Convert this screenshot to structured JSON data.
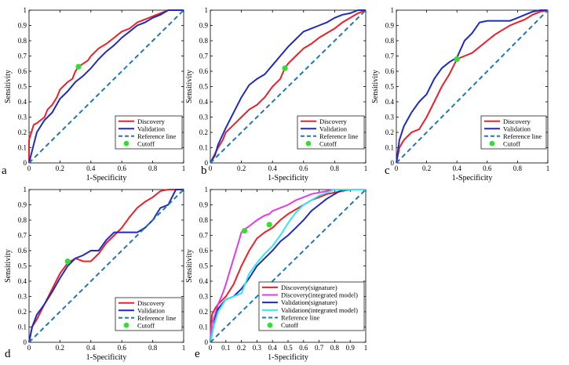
{
  "chart_data": [
    {
      "type": "line",
      "panel": "a",
      "xlabel": "1-Specificity",
      "ylabel": "Sensitivity",
      "xlim": [
        0,
        1
      ],
      "ylim": [
        0,
        1
      ],
      "xticks": [
        "0",
        "0.2",
        "0.4",
        "0.6",
        "0.8",
        "1"
      ],
      "yticks": [
        "0",
        "0.1",
        "0.2",
        "0.3",
        "0.4",
        "0.5",
        "0.6",
        "0.7",
        "0.8",
        "0.9",
        "1"
      ],
      "legend_position": "bottom-right",
      "series": [
        {
          "name": "Discovery",
          "color": "#e8212a",
          "style": "solid",
          "x": [
            0,
            0,
            0.03,
            0.05,
            0.1,
            0.12,
            0.15,
            0.18,
            0.2,
            0.22,
            0.25,
            0.28,
            0.3,
            0.32,
            0.35,
            0.38,
            0.4,
            0.45,
            0.5,
            0.55,
            0.6,
            0.65,
            0.7,
            0.75,
            0.8,
            0.85,
            0.9,
            1
          ],
          "y": [
            0,
            0.15,
            0.25,
            0.26,
            0.3,
            0.35,
            0.38,
            0.43,
            0.48,
            0.5,
            0.53,
            0.55,
            0.6,
            0.63,
            0.65,
            0.67,
            0.7,
            0.75,
            0.78,
            0.82,
            0.86,
            0.88,
            0.92,
            0.94,
            0.96,
            0.98,
            1,
            1
          ]
        },
        {
          "name": "Validation",
          "color": "#1f2bbd",
          "style": "solid",
          "x": [
            0,
            0.03,
            0.05,
            0.1,
            0.15,
            0.2,
            0.25,
            0.3,
            0.35,
            0.4,
            0.45,
            0.5,
            0.55,
            0.6,
            0.65,
            0.7,
            0.75,
            0.8,
            0.85,
            0.9,
            0.95,
            1
          ],
          "y": [
            0,
            0.12,
            0.2,
            0.28,
            0.33,
            0.42,
            0.47,
            0.53,
            0.57,
            0.62,
            0.68,
            0.73,
            0.77,
            0.82,
            0.86,
            0.9,
            0.92,
            0.95,
            0.97,
            1,
            1,
            1
          ]
        },
        {
          "name": "Reference line",
          "color": "#1f77b4",
          "style": "dashed",
          "x": [
            0,
            1
          ],
          "y": [
            0,
            1
          ]
        }
      ],
      "cutoffs": [
        {
          "name": "Cutoff",
          "color": "#33dd33",
          "x": 0.32,
          "y": 0.63
        }
      ]
    },
    {
      "type": "line",
      "panel": "b",
      "xlabel": "1-Specificity",
      "ylabel": "Sensitivity",
      "xlim": [
        0,
        1
      ],
      "ylim": [
        0,
        1
      ],
      "xticks": [
        "0",
        "0.2",
        "0.4",
        "0.6",
        "0.8",
        "1"
      ],
      "yticks": [
        "0",
        "0.1",
        "0.2",
        "0.3",
        "0.4",
        "0.5",
        "0.6",
        "0.7",
        "0.8",
        "0.9",
        "1"
      ],
      "legend_position": "bottom-right",
      "series": [
        {
          "name": "Discovery",
          "color": "#e8212a",
          "style": "solid",
          "x": [
            0,
            0.05,
            0.08,
            0.1,
            0.15,
            0.2,
            0.25,
            0.3,
            0.35,
            0.4,
            0.45,
            0.48,
            0.5,
            0.55,
            0.6,
            0.65,
            0.7,
            0.75,
            0.8,
            0.85,
            0.9,
            0.95,
            1
          ],
          "y": [
            0,
            0.1,
            0.15,
            0.2,
            0.25,
            0.3,
            0.35,
            0.38,
            0.43,
            0.5,
            0.55,
            0.62,
            0.65,
            0.7,
            0.75,
            0.78,
            0.82,
            0.85,
            0.88,
            0.92,
            0.95,
            0.98,
            1
          ]
        },
        {
          "name": "Validation",
          "color": "#1f2bbd",
          "style": "solid",
          "x": [
            0,
            0.03,
            0.05,
            0.1,
            0.15,
            0.2,
            0.25,
            0.3,
            0.35,
            0.4,
            0.45,
            0.5,
            0.55,
            0.6,
            0.65,
            0.7,
            0.75,
            0.8,
            0.85,
            0.9,
            0.95,
            1
          ],
          "y": [
            0,
            0.05,
            0.12,
            0.23,
            0.33,
            0.43,
            0.51,
            0.55,
            0.58,
            0.64,
            0.7,
            0.76,
            0.81,
            0.86,
            0.88,
            0.9,
            0.92,
            0.95,
            0.97,
            0.98,
            1,
            1
          ]
        },
        {
          "name": "Reference line",
          "color": "#1f77b4",
          "style": "dashed",
          "x": [
            0,
            1
          ],
          "y": [
            0,
            1
          ]
        }
      ],
      "cutoffs": [
        {
          "name": "Cutoff",
          "color": "#33dd33",
          "x": 0.48,
          "y": 0.62
        }
      ]
    },
    {
      "type": "line",
      "panel": "c",
      "xlabel": "1-Specificity",
      "ylabel": "Sensitivity",
      "xlim": [
        0,
        1
      ],
      "ylim": [
        0,
        1
      ],
      "xticks": [
        "0",
        "0.2",
        "0.4",
        "0.6",
        "0.8",
        "1"
      ],
      "yticks": [
        "0",
        "0.1",
        "0.2",
        "0.3",
        "0.4",
        "0.5",
        "0.6",
        "0.7",
        "0.8",
        "0.9",
        "1"
      ],
      "legend_position": "bottom-right",
      "series": [
        {
          "name": "Discovery",
          "color": "#e8212a",
          "style": "solid",
          "x": [
            0,
            0.02,
            0.05,
            0.1,
            0.15,
            0.2,
            0.25,
            0.3,
            0.35,
            0.4,
            0.45,
            0.5,
            0.55,
            0.6,
            0.65,
            0.7,
            0.75,
            0.8,
            0.85,
            0.9,
            0.95,
            1
          ],
          "y": [
            0,
            0.1,
            0.15,
            0.2,
            0.22,
            0.3,
            0.4,
            0.5,
            0.58,
            0.68,
            0.7,
            0.72,
            0.76,
            0.8,
            0.84,
            0.87,
            0.9,
            0.92,
            0.94,
            0.97,
            0.99,
            1
          ]
        },
        {
          "name": "Validation",
          "color": "#1f2bbd",
          "style": "solid",
          "x": [
            0,
            0.02,
            0.05,
            0.1,
            0.15,
            0.2,
            0.25,
            0.3,
            0.35,
            0.4,
            0.45,
            0.5,
            0.55,
            0.6,
            0.65,
            0.7,
            0.75,
            0.8,
            0.85,
            0.9,
            0.95,
            1
          ],
          "y": [
            0,
            0.15,
            0.24,
            0.33,
            0.4,
            0.45,
            0.55,
            0.62,
            0.66,
            0.69,
            0.8,
            0.85,
            0.92,
            0.93,
            0.93,
            0.93,
            0.93,
            0.95,
            0.97,
            0.99,
            1,
            1
          ]
        },
        {
          "name": "Reference line",
          "color": "#1f77b4",
          "style": "dashed",
          "x": [
            0,
            1
          ],
          "y": [
            0,
            1
          ]
        }
      ],
      "cutoffs": [
        {
          "name": "Cutoff",
          "color": "#33dd33",
          "x": 0.4,
          "y": 0.68
        }
      ]
    },
    {
      "type": "line",
      "panel": "d",
      "xlabel": "1-Specificity",
      "ylabel": "Sensitivity",
      "xlim": [
        0,
        1
      ],
      "ylim": [
        0,
        1
      ],
      "xticks": [
        "0",
        "0.2",
        "0.4",
        "0.6",
        "0.8",
        "1"
      ],
      "yticks": [
        "0",
        "0.1",
        "0.2",
        "0.3",
        "0.4",
        "0.5",
        "0.6",
        "0.7",
        "0.8",
        "0.9",
        "1"
      ],
      "legend_position": "bottom-right",
      "series": [
        {
          "name": "Discovery",
          "color": "#e8212a",
          "style": "solid",
          "x": [
            0,
            0.02,
            0.05,
            0.1,
            0.15,
            0.2,
            0.25,
            0.3,
            0.35,
            0.4,
            0.45,
            0.5,
            0.55,
            0.6,
            0.65,
            0.7,
            0.75,
            0.8,
            0.85,
            0.9,
            1
          ],
          "y": [
            0,
            0.1,
            0.15,
            0.25,
            0.35,
            0.45,
            0.52,
            0.55,
            0.53,
            0.53,
            0.58,
            0.65,
            0.7,
            0.75,
            0.82,
            0.88,
            0.92,
            0.95,
            0.99,
            1,
            1
          ]
        },
        {
          "name": "Validation",
          "color": "#1f2bbd",
          "style": "solid",
          "x": [
            0,
            0.02,
            0.05,
            0.1,
            0.15,
            0.2,
            0.25,
            0.3,
            0.35,
            0.4,
            0.45,
            0.5,
            0.55,
            0.6,
            0.65,
            0.7,
            0.75,
            0.8,
            0.85,
            0.9,
            0.95,
            1
          ],
          "y": [
            0,
            0.1,
            0.18,
            0.25,
            0.33,
            0.42,
            0.5,
            0.55,
            0.57,
            0.6,
            0.6,
            0.67,
            0.72,
            0.72,
            0.72,
            0.72,
            0.75,
            0.8,
            0.88,
            0.9,
            1,
            1
          ]
        },
        {
          "name": "Reference line",
          "color": "#1f77b4",
          "style": "dashed",
          "x": [
            0,
            1
          ],
          "y": [
            0,
            1
          ]
        }
      ],
      "cutoffs": [
        {
          "name": "Cutoff",
          "color": "#33dd33",
          "x": 0.25,
          "y": 0.53
        }
      ]
    },
    {
      "type": "line",
      "panel": "e",
      "xlabel": "1-Specificity",
      "ylabel": "Sensitivity",
      "xlim": [
        0,
        1
      ],
      "ylim": [
        0,
        1
      ],
      "xticks": [
        "0",
        "0.1",
        "0.2",
        "0.3",
        "0.4",
        "0.5",
        "0.6",
        "0.7",
        "0.8",
        "0.9",
        "1"
      ],
      "yticks": [
        "0",
        "0.1",
        "0.2",
        "0.3",
        "0.4",
        "0.5",
        "0.6",
        "0.7",
        "0.8",
        "0.9",
        "1"
      ],
      "legend_position": "bottom-right",
      "series": [
        {
          "name": "Discovery(signature)",
          "color": "#e8212a",
          "style": "solid",
          "x": [
            0,
            0.01,
            0.03,
            0.05,
            0.08,
            0.1,
            0.15,
            0.2,
            0.25,
            0.3,
            0.35,
            0.4,
            0.45,
            0.5,
            0.55,
            0.6,
            0.65,
            0.7,
            0.75,
            0.8,
            0.85,
            0.9,
            1
          ],
          "y": [
            0,
            0.18,
            0.22,
            0.25,
            0.28,
            0.3,
            0.38,
            0.5,
            0.6,
            0.68,
            0.72,
            0.75,
            0.8,
            0.84,
            0.87,
            0.9,
            0.93,
            0.95,
            0.97,
            0.98,
            0.99,
            1,
            1
          ]
        },
        {
          "name": "Discovery(integrated model)",
          "color": "#e23ce6",
          "style": "solid",
          "x": [
            0,
            0.01,
            0.03,
            0.05,
            0.08,
            0.1,
            0.12,
            0.15,
            0.18,
            0.2,
            0.22,
            0.25,
            0.3,
            0.35,
            0.38,
            0.4,
            0.45,
            0.5,
            0.55,
            0.6,
            0.65,
            0.7,
            0.75,
            0.8,
            0.85,
            0.9,
            1
          ],
          "y": [
            0,
            0.12,
            0.18,
            0.25,
            0.32,
            0.38,
            0.45,
            0.55,
            0.65,
            0.72,
            0.74,
            0.76,
            0.8,
            0.83,
            0.84,
            0.86,
            0.88,
            0.9,
            0.93,
            0.95,
            0.97,
            0.98,
            0.99,
            1,
            1,
            1,
            1
          ]
        },
        {
          "name": "Validation(signature)",
          "color": "#1f2bbd",
          "style": "solid",
          "x": [
            0,
            0.03,
            0.05,
            0.1,
            0.15,
            0.2,
            0.25,
            0.3,
            0.35,
            0.4,
            0.45,
            0.5,
            0.55,
            0.6,
            0.65,
            0.7,
            0.75,
            0.8,
            0.85,
            0.9,
            1
          ],
          "y": [
            0,
            0.15,
            0.22,
            0.28,
            0.3,
            0.35,
            0.42,
            0.5,
            0.55,
            0.6,
            0.66,
            0.7,
            0.75,
            0.8,
            0.86,
            0.9,
            0.94,
            0.97,
            1,
            1,
            1
          ]
        },
        {
          "name": "Validation(integrated model)",
          "color": "#33e6f0",
          "style": "solid",
          "x": [
            0,
            0.02,
            0.05,
            0.1,
            0.15,
            0.2,
            0.25,
            0.3,
            0.35,
            0.4,
            0.45,
            0.5,
            0.55,
            0.6,
            0.65,
            0.7,
            0.75,
            0.8,
            0.85,
            0.9,
            1
          ],
          "y": [
            0,
            0.1,
            0.2,
            0.28,
            0.3,
            0.32,
            0.45,
            0.52,
            0.58,
            0.63,
            0.7,
            0.78,
            0.85,
            0.9,
            0.93,
            0.96,
            0.98,
            1,
            1,
            1,
            1
          ]
        },
        {
          "name": "Reference line",
          "color": "#1f77b4",
          "style": "dashed",
          "x": [
            0,
            1
          ],
          "y": [
            0,
            1
          ]
        }
      ],
      "cutoffs": [
        {
          "name": "Cutoff",
          "color": "#33dd33",
          "x": 0.22,
          "y": 0.73
        },
        {
          "name": "Cutoff",
          "color": "#33dd33",
          "x": 0.38,
          "y": 0.77
        }
      ]
    }
  ]
}
